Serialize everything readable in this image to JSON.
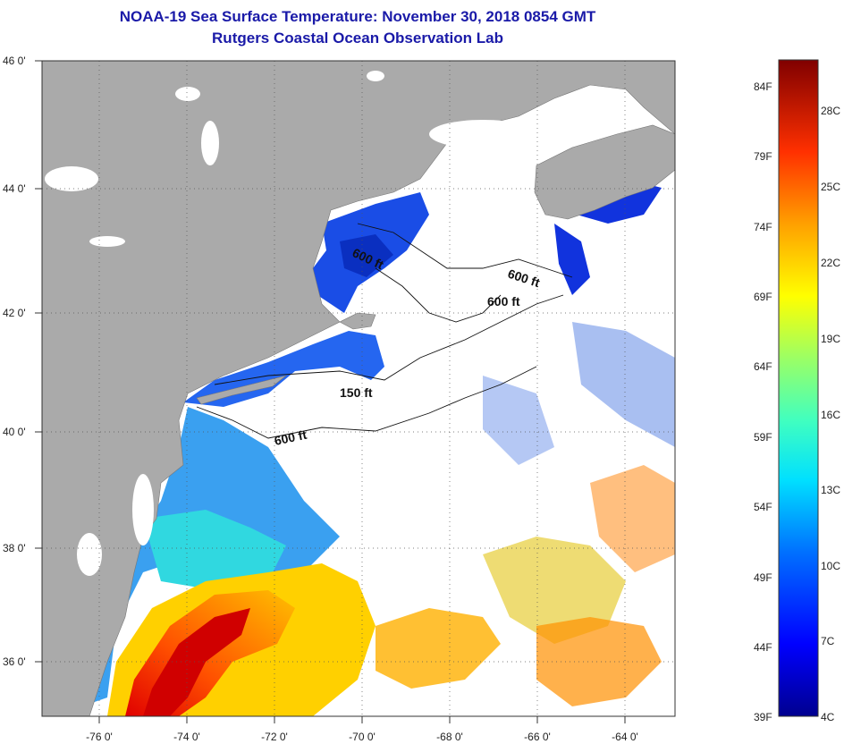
{
  "header": {
    "title": "NOAA-19 Sea Surface Temperature:  November 30, 2018 0854 GMT",
    "subtitle": "Rutgers Coastal Ocean Observation Lab"
  },
  "axes": {
    "lon_labels": [
      "-76 0'",
      "-74 0'",
      "-72 0'",
      "-70 0'",
      "-68 0'",
      "-66 0'",
      "-64 0'"
    ],
    "lat_labels": [
      "46 0'",
      "44 0'",
      "42 0'",
      "40 0'",
      "38 0'",
      "36 0'"
    ]
  },
  "contours": {
    "labels": [
      "600 ft",
      "600 ft",
      "600 ft",
      "150 ft",
      "600 ft"
    ]
  },
  "colorbar": {
    "fahrenheit": [
      "84F",
      "79F",
      "74F",
      "69F",
      "64F",
      "59F",
      "54F",
      "49F",
      "44F",
      "39F"
    ],
    "celsius": [
      "28C",
      "25C",
      "22C",
      "19C",
      "16C",
      "13C",
      "10C",
      "7C",
      "4C"
    ]
  },
  "colors": {
    "land": "#aaaaaa",
    "cloud": "#ffffff",
    "title": "#1a1aa8"
  }
}
